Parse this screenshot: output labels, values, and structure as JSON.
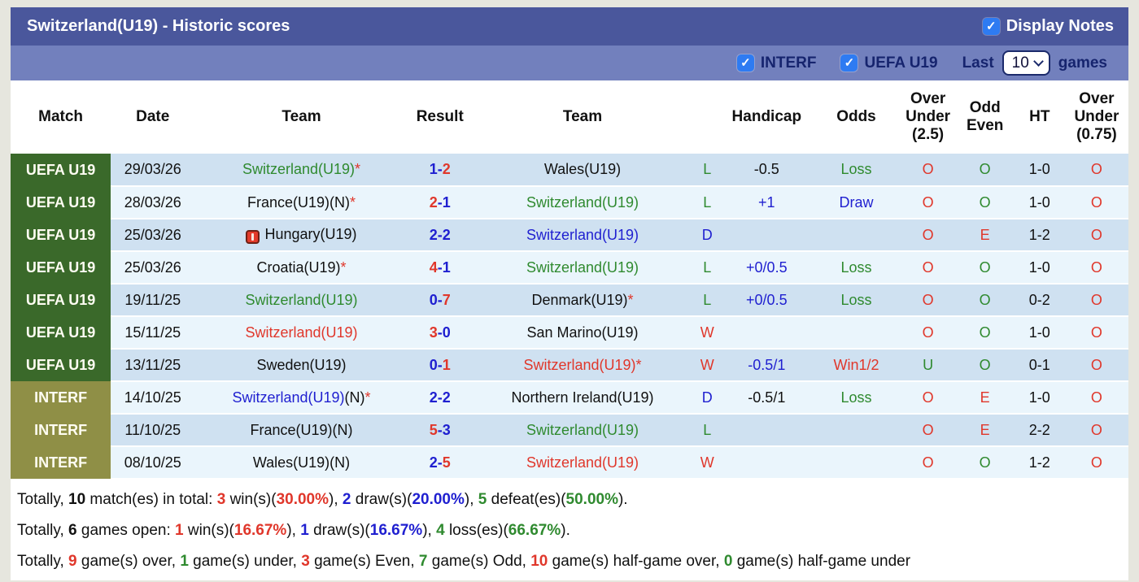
{
  "icons": {
    "check": "✓"
  },
  "colors": {
    "title_bar": "#4a579c",
    "filter_bar": "#7280bd",
    "uefa_label": "#3a692a",
    "interf_label": "#8f8f46",
    "row_dark": "#cfe1f1",
    "row_light": "#eaf5fc",
    "red": "#e0372b",
    "green": "#2f8a2f",
    "blue": "#1f1fd0",
    "checkbox_blue": "#2e7bf2"
  },
  "header": {
    "title": "Switzerland(U19) - Historic scores",
    "display_notes_label": "Display Notes",
    "display_notes_checked": true
  },
  "filter": {
    "checkboxes": [
      {
        "label": "INTERF",
        "checked": true
      },
      {
        "label": "UEFA U19",
        "checked": true
      }
    ],
    "last_label": "Last",
    "games_count": "10",
    "games_label": "games"
  },
  "table": {
    "headers": [
      {
        "id": "match",
        "lines": [
          "Match"
        ]
      },
      {
        "id": "date",
        "lines": [
          "Date"
        ]
      },
      {
        "id": "team-home",
        "lines": [
          "Team"
        ]
      },
      {
        "id": "result",
        "lines": [
          "Result"
        ]
      },
      {
        "id": "team-away",
        "lines": [
          "Team"
        ]
      },
      {
        "id": "wdl",
        "lines": []
      },
      {
        "id": "handicap",
        "lines": [
          "Handicap"
        ]
      },
      {
        "id": "odds",
        "lines": [
          "Odds"
        ]
      },
      {
        "id": "over-under-2-5",
        "lines": [
          "Over",
          "Under",
          "(2.5)"
        ]
      },
      {
        "id": "odd-even",
        "lines": [
          "Odd",
          "Even"
        ]
      },
      {
        "id": "ht",
        "lines": [
          "HT"
        ]
      },
      {
        "id": "over-under-0-75",
        "lines": [
          "Over",
          "Under",
          "(0.75)"
        ]
      }
    ],
    "rows": [
      {
        "league": "UEFA U19",
        "league_class": "uefa",
        "date": "29/03/26",
        "home": [
          {
            "t": "Switzerland(U19)",
            "c": "green"
          },
          {
            "t": "*",
            "c": "red"
          }
        ],
        "home_icon": false,
        "score": [
          {
            "t": "1",
            "c": "blue"
          },
          {
            "t": "-",
            "c": "blue"
          },
          {
            "t": "2",
            "c": "red"
          }
        ],
        "away": [
          {
            "t": "Wales(U19)",
            "c": "black"
          }
        ],
        "wdl": {
          "t": "L",
          "c": "green"
        },
        "handicap": {
          "t": "-0.5",
          "c": "black"
        },
        "odds": {
          "t": "Loss",
          "c": "green"
        },
        "ou25": {
          "t": "O",
          "c": "red"
        },
        "oddeven": {
          "t": "O",
          "c": "green"
        },
        "ht": "1-0",
        "ou075": {
          "t": "O",
          "c": "red"
        }
      },
      {
        "league": "UEFA U19",
        "league_class": "uefa",
        "date": "28/03/26",
        "home": [
          {
            "t": "France(U19)(N)",
            "c": "black"
          },
          {
            "t": "*",
            "c": "red"
          }
        ],
        "home_icon": false,
        "score": [
          {
            "t": "2",
            "c": "red"
          },
          {
            "t": "-",
            "c": "blue"
          },
          {
            "t": "1",
            "c": "blue"
          }
        ],
        "away": [
          {
            "t": "Switzerland(U19)",
            "c": "green"
          }
        ],
        "wdl": {
          "t": "L",
          "c": "green"
        },
        "handicap": {
          "t": "+1",
          "c": "blue"
        },
        "odds": {
          "t": "Draw",
          "c": "blue"
        },
        "ou25": {
          "t": "O",
          "c": "red"
        },
        "oddeven": {
          "t": "O",
          "c": "green"
        },
        "ht": "1-0",
        "ou075": {
          "t": "O",
          "c": "red"
        }
      },
      {
        "league": "UEFA U19",
        "league_class": "uefa",
        "date": "25/03/26",
        "home": [
          {
            "t": "Hungary(U19)",
            "c": "black"
          }
        ],
        "home_icon": true,
        "score": [
          {
            "t": "2",
            "c": "blue"
          },
          {
            "t": "-",
            "c": "blue"
          },
          {
            "t": "2",
            "c": "blue"
          }
        ],
        "away": [
          {
            "t": "Switzerland(U19)",
            "c": "blue"
          }
        ],
        "wdl": {
          "t": "D",
          "c": "blue"
        },
        "handicap": {
          "t": "",
          "c": "black"
        },
        "odds": {
          "t": "",
          "c": "black"
        },
        "ou25": {
          "t": "O",
          "c": "red"
        },
        "oddeven": {
          "t": "E",
          "c": "red"
        },
        "ht": "1-2",
        "ou075": {
          "t": "O",
          "c": "red"
        }
      },
      {
        "league": "UEFA U19",
        "league_class": "uefa",
        "date": "25/03/26",
        "home": [
          {
            "t": "Croatia(U19)",
            "c": "black"
          },
          {
            "t": "*",
            "c": "red"
          }
        ],
        "home_icon": false,
        "score": [
          {
            "t": "4",
            "c": "red"
          },
          {
            "t": "-",
            "c": "blue"
          },
          {
            "t": "1",
            "c": "blue"
          }
        ],
        "away": [
          {
            "t": "Switzerland(U19)",
            "c": "green"
          }
        ],
        "wdl": {
          "t": "L",
          "c": "green"
        },
        "handicap": {
          "t": "+0/0.5",
          "c": "blue"
        },
        "odds": {
          "t": "Loss",
          "c": "green"
        },
        "ou25": {
          "t": "O",
          "c": "red"
        },
        "oddeven": {
          "t": "O",
          "c": "green"
        },
        "ht": "1-0",
        "ou075": {
          "t": "O",
          "c": "red"
        }
      },
      {
        "league": "UEFA U19",
        "league_class": "uefa",
        "date": "19/11/25",
        "home": [
          {
            "t": "Switzerland(U19)",
            "c": "green"
          }
        ],
        "home_icon": false,
        "score": [
          {
            "t": "0",
            "c": "blue"
          },
          {
            "t": "-",
            "c": "blue"
          },
          {
            "t": "7",
            "c": "red"
          }
        ],
        "away": [
          {
            "t": "Denmark(U19)",
            "c": "black"
          },
          {
            "t": "*",
            "c": "red"
          }
        ],
        "wdl": {
          "t": "L",
          "c": "green"
        },
        "handicap": {
          "t": "+0/0.5",
          "c": "blue"
        },
        "odds": {
          "t": "Loss",
          "c": "green"
        },
        "ou25": {
          "t": "O",
          "c": "red"
        },
        "oddeven": {
          "t": "O",
          "c": "green"
        },
        "ht": "0-2",
        "ou075": {
          "t": "O",
          "c": "red"
        }
      },
      {
        "league": "UEFA U19",
        "league_class": "uefa",
        "date": "15/11/25",
        "home": [
          {
            "t": "Switzerland(U19)",
            "c": "red"
          }
        ],
        "home_icon": false,
        "score": [
          {
            "t": "3",
            "c": "red"
          },
          {
            "t": "-",
            "c": "blue"
          },
          {
            "t": "0",
            "c": "blue"
          }
        ],
        "away": [
          {
            "t": "San Marino(U19)",
            "c": "black"
          }
        ],
        "wdl": {
          "t": "W",
          "c": "red"
        },
        "handicap": {
          "t": "",
          "c": "black"
        },
        "odds": {
          "t": "",
          "c": "black"
        },
        "ou25": {
          "t": "O",
          "c": "red"
        },
        "oddeven": {
          "t": "O",
          "c": "green"
        },
        "ht": "1-0",
        "ou075": {
          "t": "O",
          "c": "red"
        }
      },
      {
        "league": "UEFA U19",
        "league_class": "uefa",
        "date": "13/11/25",
        "home": [
          {
            "t": "Sweden(U19)",
            "c": "black"
          }
        ],
        "home_icon": false,
        "score": [
          {
            "t": "0",
            "c": "blue"
          },
          {
            "t": "-",
            "c": "blue"
          },
          {
            "t": "1",
            "c": "red"
          }
        ],
        "away": [
          {
            "t": "Switzerland(U19)",
            "c": "red"
          },
          {
            "t": "*",
            "c": "red"
          }
        ],
        "wdl": {
          "t": "W",
          "c": "red"
        },
        "handicap": {
          "t": "-0.5/1",
          "c": "blue"
        },
        "odds": {
          "t": "Win1/2",
          "c": "red"
        },
        "ou25": {
          "t": "U",
          "c": "green"
        },
        "oddeven": {
          "t": "O",
          "c": "green"
        },
        "ht": "0-1",
        "ou075": {
          "t": "O",
          "c": "red"
        }
      },
      {
        "league": "INTERF",
        "league_class": "interf",
        "date": "14/10/25",
        "home": [
          {
            "t": "Switzerland(U19)",
            "c": "blue"
          },
          {
            "t": "(N)",
            "c": "black"
          },
          {
            "t": "*",
            "c": "red"
          }
        ],
        "home_icon": false,
        "score": [
          {
            "t": "2",
            "c": "blue"
          },
          {
            "t": "-",
            "c": "blue"
          },
          {
            "t": "2",
            "c": "blue"
          }
        ],
        "away": [
          {
            "t": "Northern Ireland(U19)",
            "c": "black"
          }
        ],
        "wdl": {
          "t": "D",
          "c": "blue"
        },
        "handicap": {
          "t": "-0.5/1",
          "c": "black"
        },
        "odds": {
          "t": "Loss",
          "c": "green"
        },
        "ou25": {
          "t": "O",
          "c": "red"
        },
        "oddeven": {
          "t": "E",
          "c": "red"
        },
        "ht": "1-0",
        "ou075": {
          "t": "O",
          "c": "red"
        }
      },
      {
        "league": "INTERF",
        "league_class": "interf",
        "date": "11/10/25",
        "home": [
          {
            "t": "France(U19)(N)",
            "c": "black"
          }
        ],
        "home_icon": false,
        "score": [
          {
            "t": "5",
            "c": "red"
          },
          {
            "t": "-",
            "c": "blue"
          },
          {
            "t": "3",
            "c": "blue"
          }
        ],
        "away": [
          {
            "t": "Switzerland(U19)",
            "c": "green"
          }
        ],
        "wdl": {
          "t": "L",
          "c": "green"
        },
        "handicap": {
          "t": "",
          "c": "black"
        },
        "odds": {
          "t": "",
          "c": "black"
        },
        "ou25": {
          "t": "O",
          "c": "red"
        },
        "oddeven": {
          "t": "E",
          "c": "red"
        },
        "ht": "2-2",
        "ou075": {
          "t": "O",
          "c": "red"
        }
      },
      {
        "league": "INTERF",
        "league_class": "interf",
        "date": "08/10/25",
        "home": [
          {
            "t": "Wales(U19)(N)",
            "c": "black"
          }
        ],
        "home_icon": false,
        "score": [
          {
            "t": "2",
            "c": "blue"
          },
          {
            "t": "-",
            "c": "blue"
          },
          {
            "t": "5",
            "c": "red"
          }
        ],
        "away": [
          {
            "t": "Switzerland(U19)",
            "c": "red"
          }
        ],
        "wdl": {
          "t": "W",
          "c": "red"
        },
        "handicap": {
          "t": "",
          "c": "black"
        },
        "odds": {
          "t": "",
          "c": "black"
        },
        "ou25": {
          "t": "O",
          "c": "red"
        },
        "oddeven": {
          "t": "O",
          "c": "green"
        },
        "ht": "1-2",
        "ou075": {
          "t": "O",
          "c": "red"
        }
      }
    ]
  },
  "summary": {
    "lines": [
      [
        {
          "t": "Totally, ",
          "c": "black",
          "b": false
        },
        {
          "t": "10",
          "c": "black",
          "b": true
        },
        {
          "t": " match(es) in total: ",
          "c": "black",
          "b": false
        },
        {
          "t": "3",
          "c": "red",
          "b": true
        },
        {
          "t": " win(s)(",
          "c": "black",
          "b": false
        },
        {
          "t": "30.00%",
          "c": "red",
          "b": true
        },
        {
          "t": "), ",
          "c": "black",
          "b": false
        },
        {
          "t": "2",
          "c": "blue",
          "b": true
        },
        {
          "t": " draw(s)(",
          "c": "black",
          "b": false
        },
        {
          "t": "20.00%",
          "c": "blue",
          "b": true
        },
        {
          "t": "), ",
          "c": "black",
          "b": false
        },
        {
          "t": "5",
          "c": "green",
          "b": true
        },
        {
          "t": " defeat(es)(",
          "c": "black",
          "b": false
        },
        {
          "t": "50.00%",
          "c": "green",
          "b": true
        },
        {
          "t": ").",
          "c": "black",
          "b": false
        }
      ],
      [
        {
          "t": "Totally, ",
          "c": "black",
          "b": false
        },
        {
          "t": "6",
          "c": "black",
          "b": true
        },
        {
          "t": " games open: ",
          "c": "black",
          "b": false
        },
        {
          "t": "1",
          "c": "red",
          "b": true
        },
        {
          "t": " win(s)(",
          "c": "black",
          "b": false
        },
        {
          "t": "16.67%",
          "c": "red",
          "b": true
        },
        {
          "t": "), ",
          "c": "black",
          "b": false
        },
        {
          "t": "1",
          "c": "blue",
          "b": true
        },
        {
          "t": " draw(s)(",
          "c": "black",
          "b": false
        },
        {
          "t": "16.67%",
          "c": "blue",
          "b": true
        },
        {
          "t": "), ",
          "c": "black",
          "b": false
        },
        {
          "t": "4",
          "c": "green",
          "b": true
        },
        {
          "t": " loss(es)(",
          "c": "black",
          "b": false
        },
        {
          "t": "66.67%",
          "c": "green",
          "b": true
        },
        {
          "t": ").",
          "c": "black",
          "b": false
        }
      ],
      [
        {
          "t": "Totally, ",
          "c": "black",
          "b": false
        },
        {
          "t": "9",
          "c": "red",
          "b": true
        },
        {
          "t": " game(s) over, ",
          "c": "black",
          "b": false
        },
        {
          "t": "1",
          "c": "green",
          "b": true
        },
        {
          "t": " game(s) under, ",
          "c": "black",
          "b": false
        },
        {
          "t": "3",
          "c": "red",
          "b": true
        },
        {
          "t": " game(s) Even, ",
          "c": "black",
          "b": false
        },
        {
          "t": "7",
          "c": "green",
          "b": true
        },
        {
          "t": " game(s) Odd, ",
          "c": "black",
          "b": false
        },
        {
          "t": "10",
          "c": "red",
          "b": true
        },
        {
          "t": " game(s) half-game over, ",
          "c": "black",
          "b": false
        },
        {
          "t": "0",
          "c": "green",
          "b": true
        },
        {
          "t": " game(s) half-game under",
          "c": "black",
          "b": false
        }
      ]
    ]
  }
}
